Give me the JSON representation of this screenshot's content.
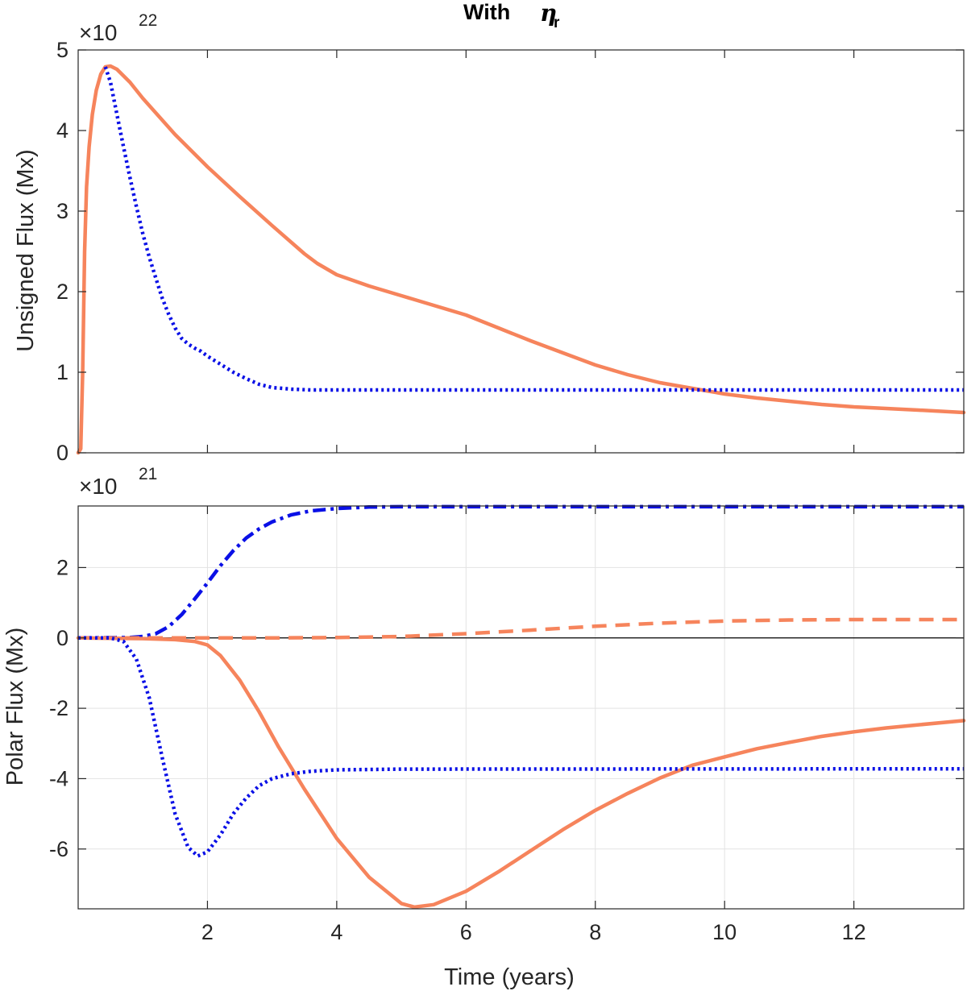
{
  "title": {
    "text": "With",
    "symbol": "η",
    "subscript": "r"
  },
  "colors": {
    "orange": "#f6845c",
    "blue": "#0a10e6",
    "axis": "#262626",
    "grid": "#e3e3e3"
  },
  "chart_data": [
    {
      "type": "line",
      "id": "unsigned",
      "title": "With ηr",
      "ylabel": "Unsigned Flux (Mx)",
      "xlabel": "",
      "exponent_base": "×10",
      "exponent_power": "22",
      "xlim": [
        0,
        13.7
      ],
      "ylim": [
        0,
        5
      ],
      "xticks": [
        2,
        4,
        6,
        8,
        10,
        12
      ],
      "xtick_labels_shown": false,
      "yticks": [
        0,
        1,
        2,
        3,
        4,
        5
      ],
      "ytick_labels": [
        "0",
        "1",
        "2",
        "3",
        "4",
        "5"
      ],
      "grid": false,
      "series": [
        {
          "name": "orange solid",
          "color": "#f6845c",
          "style": "solid",
          "points": [
            [
              0,
              0
            ],
            [
              0.04,
              0.05
            ],
            [
              0.07,
              1.0
            ],
            [
              0.1,
              2.5
            ],
            [
              0.13,
              3.3
            ],
            [
              0.17,
              3.8
            ],
            [
              0.22,
              4.2
            ],
            [
              0.28,
              4.5
            ],
            [
              0.35,
              4.7
            ],
            [
              0.42,
              4.79
            ],
            [
              0.5,
              4.8
            ],
            [
              0.6,
              4.76
            ],
            [
              0.8,
              4.6
            ],
            [
              1.0,
              4.4
            ],
            [
              1.5,
              3.95
            ],
            [
              2.0,
              3.55
            ],
            [
              2.5,
              3.18
            ],
            [
              3.0,
              2.82
            ],
            [
              3.5,
              2.47
            ],
            [
              3.7,
              2.35
            ],
            [
              4.0,
              2.21
            ],
            [
              4.5,
              2.07
            ],
            [
              5.0,
              1.95
            ],
            [
              5.5,
              1.83
            ],
            [
              6.0,
              1.71
            ],
            [
              6.5,
              1.55
            ],
            [
              7.0,
              1.39
            ],
            [
              7.5,
              1.24
            ],
            [
              8.0,
              1.09
            ],
            [
              8.5,
              0.97
            ],
            [
              9.0,
              0.87
            ],
            [
              9.5,
              0.8
            ],
            [
              10.0,
              0.73
            ],
            [
              10.5,
              0.68
            ],
            [
              11.0,
              0.64
            ],
            [
              11.5,
              0.6
            ],
            [
              12.0,
              0.57
            ],
            [
              12.5,
              0.55
            ],
            [
              13.0,
              0.53
            ],
            [
              13.7,
              0.5
            ]
          ]
        },
        {
          "name": "blue dotted",
          "color": "#0a10e6",
          "style": "dotted",
          "points": [
            [
              0.42,
              4.79
            ],
            [
              0.5,
              4.6
            ],
            [
              0.6,
              4.2
            ],
            [
              0.7,
              3.8
            ],
            [
              0.8,
              3.42
            ],
            [
              0.9,
              3.06
            ],
            [
              1.0,
              2.72
            ],
            [
              1.1,
              2.43
            ],
            [
              1.2,
              2.17
            ],
            [
              1.3,
              1.92
            ],
            [
              1.4,
              1.72
            ],
            [
              1.5,
              1.55
            ],
            [
              1.6,
              1.42
            ],
            [
              1.7,
              1.35
            ],
            [
              1.8,
              1.3
            ],
            [
              1.9,
              1.26
            ],
            [
              2.0,
              1.2
            ],
            [
              2.2,
              1.1
            ],
            [
              2.4,
              1.0
            ],
            [
              2.6,
              0.92
            ],
            [
              2.8,
              0.85
            ],
            [
              3.0,
              0.81
            ],
            [
              3.3,
              0.79
            ],
            [
              3.6,
              0.78
            ],
            [
              4.0,
              0.78
            ],
            [
              13.7,
              0.78
            ]
          ]
        }
      ]
    },
    {
      "type": "line",
      "id": "polar",
      "ylabel": "Polar Flux (Mx)",
      "xlabel": "Time (years)",
      "exponent_base": "×10",
      "exponent_power": "21",
      "xlim": [
        0,
        13.7
      ],
      "ylim": [
        -7.7,
        3.75
      ],
      "xticks": [
        2,
        4,
        6,
        8,
        10,
        12
      ],
      "xtick_labels": [
        "2",
        "4",
        "6",
        "8",
        "10",
        "12"
      ],
      "yticks": [
        -6,
        -4,
        -2,
        0,
        2
      ],
      "ytick_labels": [
        "-6",
        "-4",
        "-2",
        "0",
        "2"
      ],
      "grid": true,
      "zero_line": true,
      "series": [
        {
          "name": "blue dash-dot",
          "color": "#0a10e6",
          "style": "dashdot",
          "points": [
            [
              0,
              0
            ],
            [
              0.8,
              0.01
            ],
            [
              1.0,
              0.04
            ],
            [
              1.2,
              0.12
            ],
            [
              1.4,
              0.32
            ],
            [
              1.6,
              0.66
            ],
            [
              1.8,
              1.1
            ],
            [
              2.0,
              1.56
            ],
            [
              2.2,
              2.05
            ],
            [
              2.4,
              2.48
            ],
            [
              2.6,
              2.84
            ],
            [
              2.8,
              3.1
            ],
            [
              3.0,
              3.3
            ],
            [
              3.3,
              3.5
            ],
            [
              3.6,
              3.61
            ],
            [
              4.0,
              3.68
            ],
            [
              4.5,
              3.72
            ],
            [
              5.0,
              3.73
            ],
            [
              13.7,
              3.73
            ]
          ]
        },
        {
          "name": "orange dashed",
          "color": "#f6845c",
          "style": "dashed",
          "points": [
            [
              0,
              0
            ],
            [
              3.0,
              0
            ],
            [
              4.0,
              0.01
            ],
            [
              5.0,
              0.04
            ],
            [
              6.0,
              0.12
            ],
            [
              7.0,
              0.22
            ],
            [
              8.0,
              0.33
            ],
            [
              9.0,
              0.42
            ],
            [
              10.0,
              0.48
            ],
            [
              11.0,
              0.51
            ],
            [
              12.0,
              0.52
            ],
            [
              13.7,
              0.52
            ]
          ]
        },
        {
          "name": "orange solid",
          "color": "#f6845c",
          "style": "solid",
          "points": [
            [
              0,
              0
            ],
            [
              1.0,
              -0.02
            ],
            [
              1.5,
              -0.05
            ],
            [
              1.8,
              -0.1
            ],
            [
              2.0,
              -0.2
            ],
            [
              2.2,
              -0.5
            ],
            [
              2.5,
              -1.2
            ],
            [
              2.8,
              -2.1
            ],
            [
              3.1,
              -3.1
            ],
            [
              3.5,
              -4.3
            ],
            [
              4.0,
              -5.7
            ],
            [
              4.5,
              -6.8
            ],
            [
              5.0,
              -7.55
            ],
            [
              5.2,
              -7.65
            ],
            [
              5.5,
              -7.58
            ],
            [
              6.0,
              -7.2
            ],
            [
              6.5,
              -6.65
            ],
            [
              7.0,
              -6.05
            ],
            [
              7.5,
              -5.45
            ],
            [
              8.0,
              -4.9
            ],
            [
              8.5,
              -4.42
            ],
            [
              9.0,
              -3.98
            ],
            [
              9.5,
              -3.62
            ],
            [
              10.0,
              -3.38
            ],
            [
              10.5,
              -3.15
            ],
            [
              11.0,
              -2.97
            ],
            [
              11.5,
              -2.8
            ],
            [
              12.0,
              -2.67
            ],
            [
              12.5,
              -2.56
            ],
            [
              13.0,
              -2.47
            ],
            [
              13.7,
              -2.35
            ]
          ]
        },
        {
          "name": "blue dotted",
          "color": "#0a10e6",
          "style": "dotted",
          "points": [
            [
              0,
              0
            ],
            [
              0.5,
              0
            ],
            [
              0.7,
              -0.1
            ],
            [
              0.9,
              -0.6
            ],
            [
              1.1,
              -1.7
            ],
            [
              1.3,
              -3.4
            ],
            [
              1.5,
              -5.0
            ],
            [
              1.7,
              -5.95
            ],
            [
              1.85,
              -6.2
            ],
            [
              2.0,
              -6.08
            ],
            [
              2.2,
              -5.6
            ],
            [
              2.4,
              -5.0
            ],
            [
              2.6,
              -4.55
            ],
            [
              2.8,
              -4.2
            ],
            [
              3.0,
              -4.0
            ],
            [
              3.3,
              -3.86
            ],
            [
              3.6,
              -3.79
            ],
            [
              4.0,
              -3.75
            ],
            [
              5.0,
              -3.73
            ],
            [
              13.7,
              -3.72
            ]
          ]
        }
      ]
    }
  ]
}
